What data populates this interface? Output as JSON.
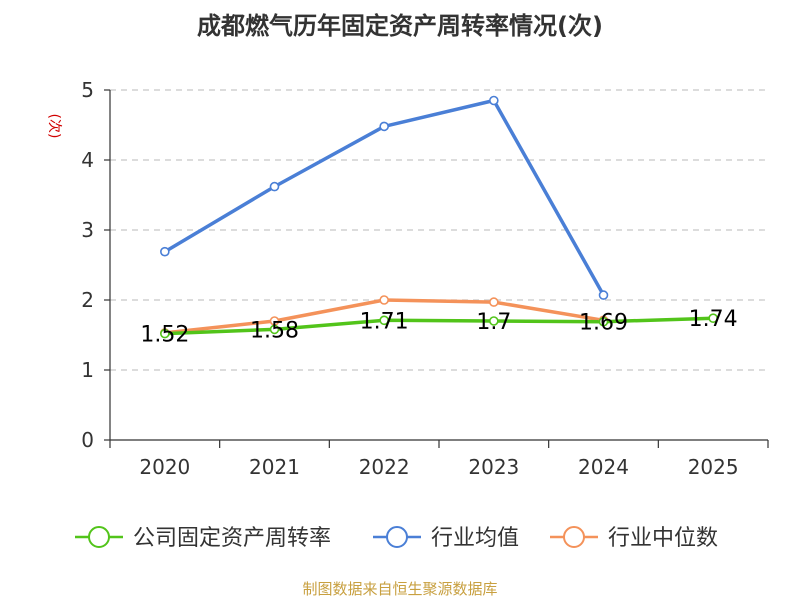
{
  "chart_data": {
    "type": "line",
    "title": "成都燃气历年固定资产周转率情况(次)",
    "ylabel": "(次)",
    "xlabel": "",
    "categories": [
      "2020",
      "2021",
      "2022",
      "2023",
      "2024",
      "2025"
    ],
    "ylim": [
      0,
      5
    ],
    "yticks": [
      0,
      1,
      2,
      3,
      4,
      5
    ],
    "grid": true,
    "legend_position": "bottom",
    "series": [
      {
        "name": "公司固定资产周转率",
        "color": "#52c41a",
        "values": [
          1.52,
          1.58,
          1.71,
          1.7,
          1.69,
          1.74
        ],
        "labels": [
          "1.52",
          "1.58",
          "1.71",
          "1.7",
          "1.69",
          "1.74"
        ]
      },
      {
        "name": "行业均值",
        "color": "#4a7fd6",
        "values": [
          2.69,
          3.62,
          4.48,
          4.85,
          2.07,
          null
        ]
      },
      {
        "name": "行业中位数",
        "color": "#f4925a",
        "values": [
          1.53,
          1.7,
          2.0,
          1.97,
          1.71,
          null
        ]
      }
    ]
  },
  "source": "制图数据来自恒生聚源数据库"
}
